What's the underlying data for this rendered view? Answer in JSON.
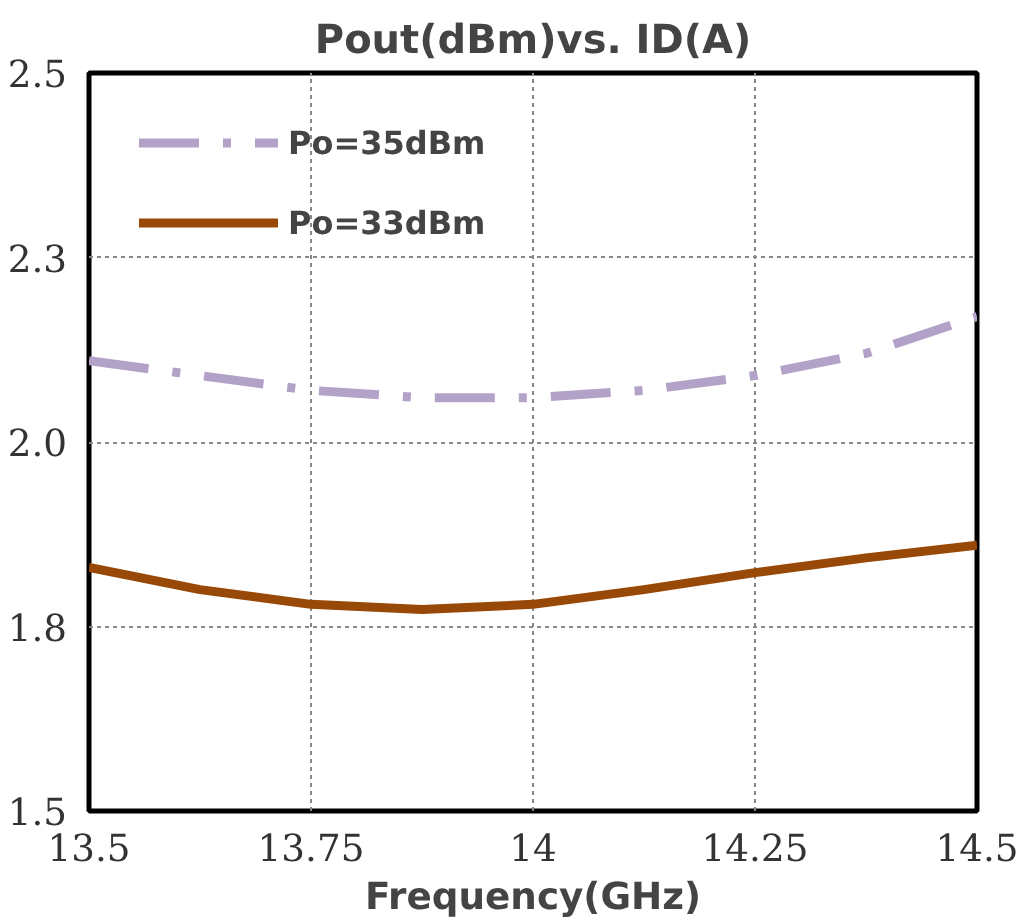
{
  "chart_data": {
    "type": "line",
    "title": "Pout(dBm)vs. ID(A)",
    "xlabel": "Frequency(GHz)",
    "x": [
      13.5,
      13.625,
      13.75,
      13.875,
      14.0,
      14.125,
      14.25,
      14.375,
      14.5
    ],
    "series": [
      {
        "name": "Po=35dBm",
        "color": "#b3a2c7",
        "line_style": "dashed",
        "values": [
          2.11,
          2.09,
          2.07,
          2.06,
          2.06,
          2.07,
          2.09,
          2.12,
          2.17
        ]
      },
      {
        "name": "Po=33dBm",
        "color": "#984807",
        "line_style": "solid",
        "values": [
          1.83,
          1.8,
          1.78,
          1.773,
          1.78,
          1.8,
          1.823,
          1.843,
          1.86
        ]
      }
    ],
    "xlim": [
      13.5,
      14.5
    ],
    "xticks": [
      13.5,
      13.75,
      14,
      14.25,
      14.5
    ],
    "ylim": [
      1.5,
      2.5
    ],
    "yticks": [
      1.5,
      {
        "value": 1.75,
        "label": "1.8"
      },
      {
        "value": 2,
        "label": "2.0"
      },
      {
        "value": 2.25,
        "label": "2.3"
      },
      2.5
    ],
    "grid": true,
    "legend": "top left",
    "marker": "none"
  }
}
